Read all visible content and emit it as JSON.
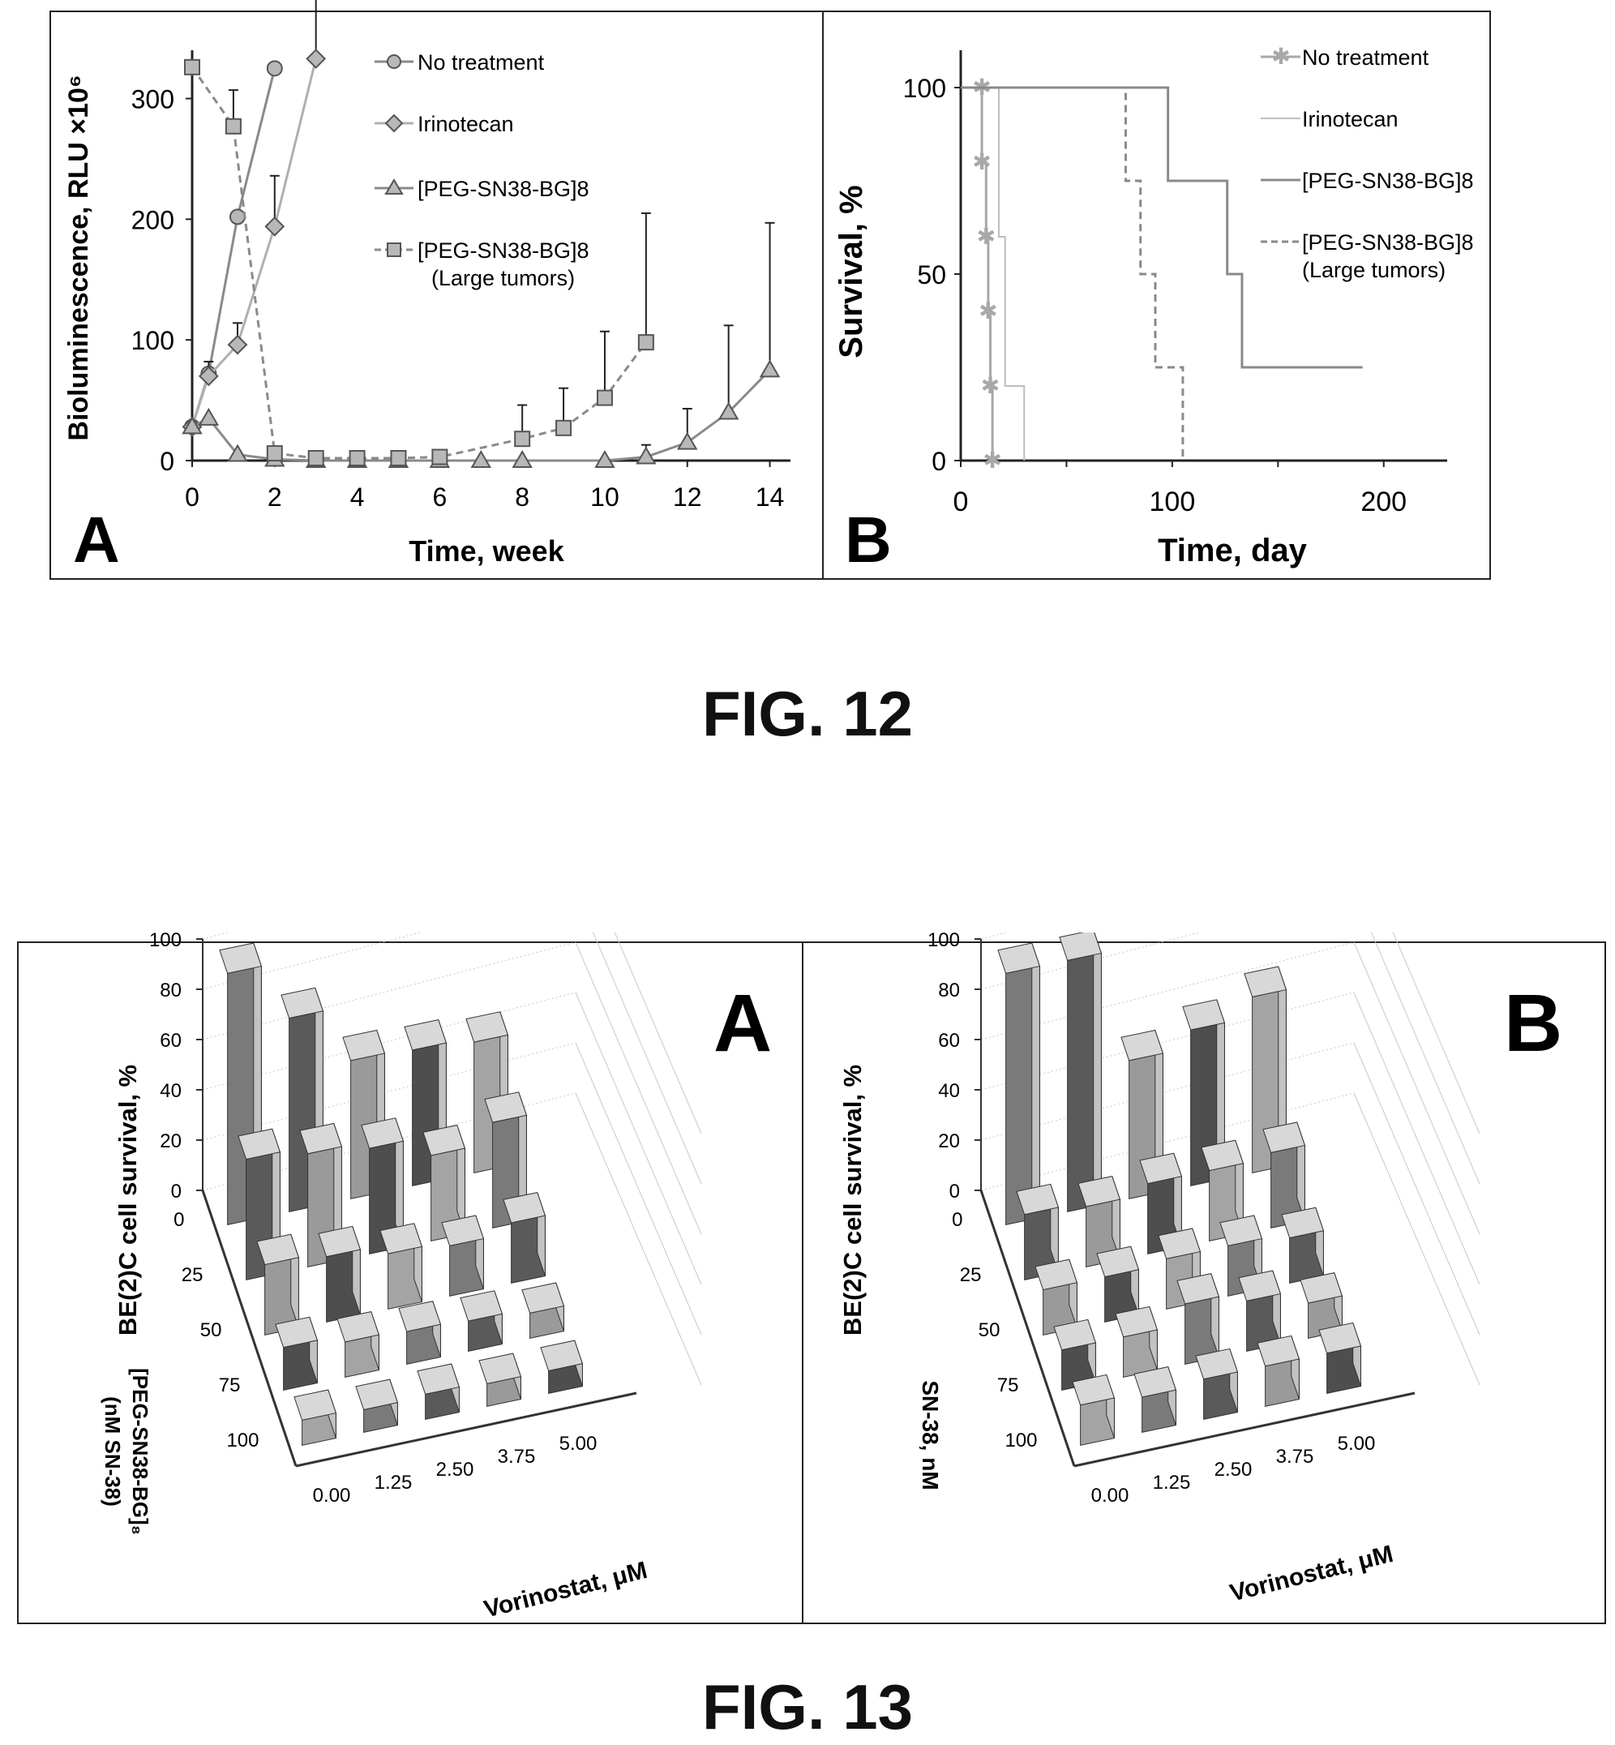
{
  "fig12": {
    "caption": "FIG. 12",
    "panelA": {
      "letter": "A",
      "chart_data": {
        "type": "line",
        "xlabel": "Time, week",
        "ylabel": "Bioluminescence, RLU ×10⁶",
        "xlim": [
          0,
          14.5
        ],
        "ylim": [
          0,
          340
        ],
        "xticks": [
          "0",
          "2",
          "4",
          "6",
          "8",
          "10",
          "12",
          "14"
        ],
        "yticks": [
          "0",
          "100",
          "200",
          "300"
        ],
        "legend_position": "top-right",
        "series": [
          {
            "name": "No treatment",
            "marker": "circle",
            "dash": "solid",
            "color": "#8a8a8a",
            "x": [
              0,
              0.4,
              1.1,
              2
            ],
            "y": [
              28,
              72,
              202,
              325
            ],
            "err": [
              0,
              0,
              0,
              0
            ]
          },
          {
            "name": "Irinotecan",
            "marker": "diamond",
            "dash": "solid",
            "color": "#b0b0b0",
            "x": [
              0,
              0.4,
              1.1,
              2,
              3
            ],
            "y": [
              28,
              70,
              96,
              194,
              333
            ],
            "err": [
              0,
              12,
              18,
              42,
              58
            ]
          },
          {
            "name": "[PEG-SN38-BG]8",
            "marker": "triangle",
            "dash": "solid",
            "color": "#8a8a8a",
            "x": [
              0,
              0.4,
              1.1,
              2,
              3,
              4,
              5,
              6,
              7,
              8,
              10,
              11,
              12,
              13,
              14
            ],
            "y": [
              28,
              35,
              5,
              1,
              0,
              0,
              0,
              0,
              0,
              0,
              0,
              3,
              15,
              40,
              75
            ],
            "err": [
              0,
              0,
              0,
              0,
              0,
              0,
              0,
              0,
              0,
              0,
              0,
              10,
              28,
              72,
              122
            ]
          },
          {
            "name": "[PEG-SN38-BG]8",
            "name2": "(Large tumors)",
            "marker": "square",
            "dash": "dashed",
            "color": "#8a8a8a",
            "x": [
              0,
              1,
              2,
              3,
              4,
              5,
              6,
              8,
              9,
              10,
              11
            ],
            "y": [
              326,
              277,
              6,
              2,
              2,
              2,
              3,
              18,
              27,
              52,
              98
            ],
            "err": [
              0,
              30,
              0,
              0,
              0,
              0,
              0,
              28,
              33,
              55,
              107
            ]
          }
        ]
      }
    },
    "panelB": {
      "letter": "B",
      "chart_data": {
        "type": "line",
        "xlabel": "Time, day",
        "ylabel": "Survival, %",
        "xlim": [
          0,
          230
        ],
        "ylim": [
          0,
          110
        ],
        "xticks": [
          "0",
          "100",
          "200"
        ],
        "yticks": [
          "0",
          "50",
          "100"
        ],
        "legend_position": "top-right",
        "series": [
          {
            "name": "No treatment",
            "style": "step-markers",
            "dash": "solid",
            "color": "#a8a8a8",
            "steps": [
              [
                0,
                100
              ],
              [
                10,
                100
              ],
              [
                10,
                80
              ],
              [
                12,
                80
              ],
              [
                12,
                60
              ],
              [
                13,
                60
              ],
              [
                13,
                40
              ],
              [
                14,
                40
              ],
              [
                14,
                20
              ],
              [
                15,
                20
              ],
              [
                15,
                0
              ]
            ]
          },
          {
            "name": "Irinotecan",
            "style": "step",
            "dash": "solid",
            "color": "#bdbdbd",
            "steps": [
              [
                0,
                100
              ],
              [
                18,
                100
              ],
              [
                18,
                60
              ],
              [
                21,
                60
              ],
              [
                21,
                20
              ],
              [
                30,
                20
              ],
              [
                30,
                0
              ]
            ]
          },
          {
            "name": "[PEG-SN38-BG]8",
            "style": "step",
            "dash": "solid",
            "color": "#8a8a8a",
            "steps": [
              [
                0,
                100
              ],
              [
                98,
                100
              ],
              [
                98,
                75
              ],
              [
                126,
                75
              ],
              [
                126,
                50
              ],
              [
                133,
                50
              ],
              [
                133,
                25
              ],
              [
                190,
                25
              ]
            ]
          },
          {
            "name": "[PEG-SN38-BG]8",
            "name2": "(Large tumors)",
            "style": "step",
            "dash": "dashed",
            "color": "#8a8a8a",
            "steps": [
              [
                0,
                100
              ],
              [
                78,
                100
              ],
              [
                78,
                75
              ],
              [
                85,
                75
              ],
              [
                85,
                50
              ],
              [
                92,
                50
              ],
              [
                92,
                25
              ],
              [
                105,
                25
              ],
              [
                105,
                0
              ]
            ]
          }
        ]
      }
    }
  },
  "fig13": {
    "caption": "FIG. 13",
    "panelA": {
      "letter": "A",
      "chart_data": {
        "type": "bar3d",
        "zlabel": "BE(2)C cell survival, %",
        "zticks": [
          "0",
          "20",
          "40",
          "60",
          "80",
          "100"
        ],
        "zlim": [
          0,
          100
        ],
        "xlabel": "Vorinostat, μM",
        "x_categories": [
          "0.00",
          "1.25",
          "2.50",
          "3.75",
          "5.00"
        ],
        "ylabel_line1": "[PEG-SN38-BG]₈",
        "ylabel_line2": "(nM SN-38)",
        "y_categories": [
          "0",
          "25",
          "50",
          "75",
          "100"
        ],
        "values": [
          [
            100,
            77,
            55,
            54,
            52
          ],
          [
            48,
            45,
            42,
            34,
            42
          ],
          [
            28,
            26,
            22,
            20,
            24
          ],
          [
            17,
            14,
            13,
            12,
            10
          ],
          [
            10,
            9,
            10,
            9,
            9
          ]
        ]
      }
    },
    "panelB": {
      "letter": "B",
      "chart_data": {
        "type": "bar3d",
        "zlabel": "BE(2)C cell survival, %",
        "zticks": [
          "0",
          "20",
          "40",
          "60",
          "80",
          "100"
        ],
        "zlim": [
          0,
          100
        ],
        "xlabel": "Vorinostat, μM",
        "x_categories": [
          "0.00",
          "1.25",
          "2.50",
          "3.75",
          "5.00"
        ],
        "ylabel_line1": "SN-38, nM",
        "ylabel_line2": "",
        "y_categories": [
          "0",
          "25",
          "50",
          "75",
          "100"
        ],
        "values": [
          [
            100,
            100,
            55,
            62,
            70
          ],
          [
            26,
            24,
            28,
            28,
            30
          ],
          [
            18,
            18,
            20,
            20,
            18
          ],
          [
            16,
            16,
            24,
            20,
            14
          ],
          [
            16,
            14,
            16,
            16,
            16
          ]
        ]
      }
    }
  }
}
